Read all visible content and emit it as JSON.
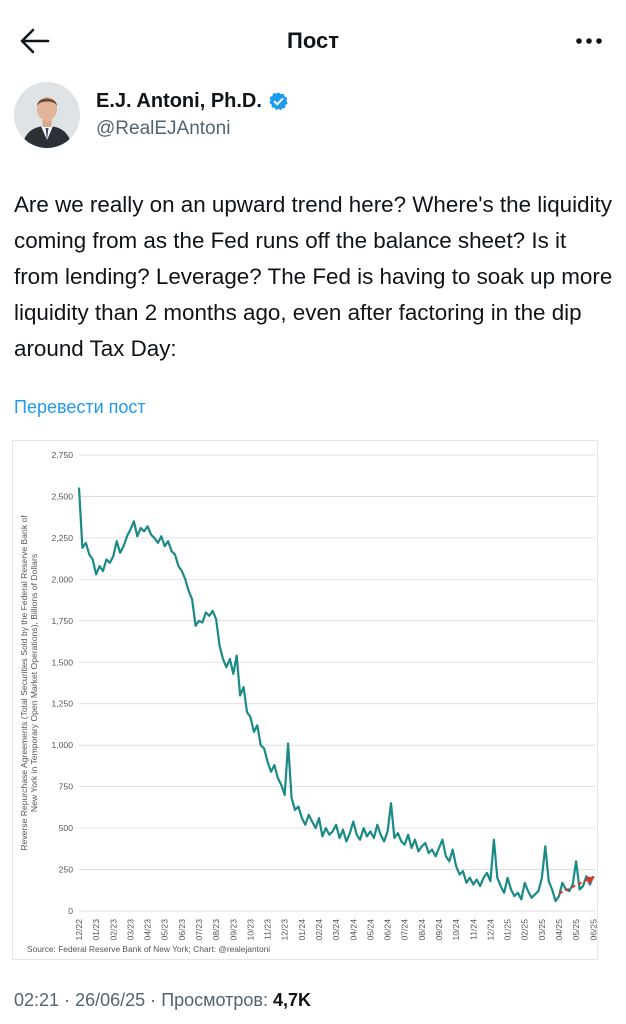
{
  "header": {
    "title": "Пост"
  },
  "author": {
    "name": "E.J. Antoni, Ph.D.",
    "handle": "@RealEJAntoni"
  },
  "tweet": {
    "text": "Are we really on an upward trend here? Where's the liquidity coming from as the Fed runs off the balance sheet? Is it from lending? Leverage? The Fed is having to soak up more liquidity than 2 months ago, even after factoring in the dip around Tax Day:",
    "translate_label": "Перевести пост"
  },
  "meta": {
    "time": "02:21",
    "sep": "·",
    "date": "26/06/25",
    "views_label": "Просмотров:",
    "views_count": "4,7K"
  },
  "colors": {
    "line": "#1a8a87",
    "trend": "#e0302a",
    "link": "#1d9bf0",
    "verified": "#1d9bf0"
  },
  "icons": {
    "back": "arrow-left-icon",
    "more": "more-icon",
    "verified": "verified-badge-icon"
  },
  "chart_data": {
    "type": "line",
    "ylabel": "Reverse Repurchase Agreements (Total Securities Sold by the Federal Reserve Bank of New York in Temporary Open Market Operations), Billions of Dollars",
    "source": "Source: Federal Reserve Bank of New York; Chart: @realejantoni",
    "yticks": [
      0,
      250,
      500,
      750,
      1000,
      1250,
      1500,
      1750,
      2000,
      2250,
      2500,
      2750
    ],
    "ytick_labels": [
      "0",
      "250",
      "500",
      "750",
      "1,000",
      "1,250",
      "1,500",
      "1,750",
      "2,000",
      "2,250",
      "2,500",
      "2,750"
    ],
    "ylim": [
      0,
      2750
    ],
    "xlim": [
      0,
      30.1
    ],
    "xticks": [
      "12/22",
      "01/23",
      "02/23",
      "03/23",
      "04/23",
      "05/23",
      "06/23",
      "07/23",
      "08/23",
      "09/23",
      "10/23",
      "11/23",
      "12/23",
      "01/24",
      "02/24",
      "03/24",
      "04/24",
      "05/24",
      "06/24",
      "07/24",
      "08/24",
      "09/24",
      "10/24",
      "11/24",
      "12/24",
      "01/25",
      "02/25",
      "03/25",
      "04/25",
      "05/25",
      "06/25"
    ],
    "grid": true,
    "legend": "none",
    "series": [
      {
        "values": [
          [
            0,
            2554
          ],
          [
            0.2,
            2190
          ],
          [
            0.4,
            2220
          ],
          [
            0.6,
            2150
          ],
          [
            0.8,
            2120
          ],
          [
            1.0,
            2030
          ],
          [
            1.2,
            2080
          ],
          [
            1.4,
            2050
          ],
          [
            1.6,
            2120
          ],
          [
            1.8,
            2100
          ],
          [
            2.0,
            2140
          ],
          [
            2.2,
            2230
          ],
          [
            2.4,
            2160
          ],
          [
            2.6,
            2200
          ],
          [
            2.8,
            2260
          ],
          [
            3.0,
            2300
          ],
          [
            3.2,
            2350
          ],
          [
            3.4,
            2260
          ],
          [
            3.6,
            2310
          ],
          [
            3.8,
            2290
          ],
          [
            4.0,
            2320
          ],
          [
            4.2,
            2270
          ],
          [
            4.4,
            2250
          ],
          [
            4.6,
            2220
          ],
          [
            4.8,
            2260
          ],
          [
            5.0,
            2200
          ],
          [
            5.2,
            2230
          ],
          [
            5.4,
            2170
          ],
          [
            5.6,
            2150
          ],
          [
            5.8,
            2080
          ],
          [
            6.0,
            2050
          ],
          [
            6.2,
            2000
          ],
          [
            6.4,
            1930
          ],
          [
            6.6,
            1880
          ],
          [
            6.8,
            1720
          ],
          [
            7.0,
            1750
          ],
          [
            7.2,
            1740
          ],
          [
            7.4,
            1800
          ],
          [
            7.6,
            1780
          ],
          [
            7.8,
            1810
          ],
          [
            8.0,
            1760
          ],
          [
            8.2,
            1600
          ],
          [
            8.4,
            1520
          ],
          [
            8.6,
            1470
          ],
          [
            8.8,
            1520
          ],
          [
            9.0,
            1430
          ],
          [
            9.2,
            1540
          ],
          [
            9.4,
            1300
          ],
          [
            9.6,
            1350
          ],
          [
            9.8,
            1200
          ],
          [
            10.0,
            1170
          ],
          [
            10.2,
            1080
          ],
          [
            10.4,
            1120
          ],
          [
            10.6,
            1000
          ],
          [
            10.8,
            980
          ],
          [
            11.0,
            900
          ],
          [
            11.2,
            840
          ],
          [
            11.4,
            880
          ],
          [
            11.6,
            800
          ],
          [
            11.8,
            760
          ],
          [
            12.0,
            700
          ],
          [
            12.2,
            1010
          ],
          [
            12.4,
            680
          ],
          [
            12.6,
            610
          ],
          [
            12.8,
            630
          ],
          [
            13.0,
            560
          ],
          [
            13.2,
            520
          ],
          [
            13.4,
            580
          ],
          [
            13.6,
            540
          ],
          [
            13.8,
            500
          ],
          [
            14.0,
            560
          ],
          [
            14.2,
            450
          ],
          [
            14.4,
            500
          ],
          [
            14.6,
            460
          ],
          [
            14.8,
            480
          ],
          [
            15.0,
            520
          ],
          [
            15.2,
            440
          ],
          [
            15.4,
            490
          ],
          [
            15.6,
            420
          ],
          [
            15.8,
            470
          ],
          [
            16.0,
            540
          ],
          [
            16.2,
            460
          ],
          [
            16.4,
            430
          ],
          [
            16.6,
            500
          ],
          [
            16.8,
            450
          ],
          [
            17.0,
            480
          ],
          [
            17.2,
            440
          ],
          [
            17.4,
            520
          ],
          [
            17.6,
            460
          ],
          [
            17.8,
            420
          ],
          [
            18.0,
            480
          ],
          [
            18.2,
            650
          ],
          [
            18.4,
            440
          ],
          [
            18.6,
            470
          ],
          [
            18.8,
            420
          ],
          [
            19.0,
            400
          ],
          [
            19.2,
            460
          ],
          [
            19.4,
            380
          ],
          [
            19.6,
            430
          ],
          [
            19.8,
            360
          ],
          [
            20.0,
            390
          ],
          [
            20.2,
            410
          ],
          [
            20.4,
            350
          ],
          [
            20.6,
            370
          ],
          [
            20.8,
            330
          ],
          [
            21.0,
            380
          ],
          [
            21.2,
            430
          ],
          [
            21.4,
            330
          ],
          [
            21.6,
            300
          ],
          [
            21.8,
            370
          ],
          [
            22.0,
            270
          ],
          [
            22.2,
            220
          ],
          [
            22.4,
            240
          ],
          [
            22.6,
            170
          ],
          [
            22.8,
            200
          ],
          [
            23.0,
            160
          ],
          [
            23.2,
            190
          ],
          [
            23.4,
            150
          ],
          [
            23.6,
            200
          ],
          [
            23.8,
            230
          ],
          [
            24.0,
            180
          ],
          [
            24.2,
            430
          ],
          [
            24.4,
            200
          ],
          [
            24.6,
            150
          ],
          [
            24.8,
            110
          ],
          [
            25.0,
            200
          ],
          [
            25.2,
            130
          ],
          [
            25.4,
            90
          ],
          [
            25.6,
            110
          ],
          [
            25.8,
            70
          ],
          [
            26.0,
            170
          ],
          [
            26.2,
            120
          ],
          [
            26.4,
            80
          ],
          [
            26.6,
            100
          ],
          [
            26.8,
            120
          ],
          [
            27.0,
            200
          ],
          [
            27.2,
            390
          ],
          [
            27.4,
            180
          ],
          [
            27.6,
            130
          ],
          [
            27.8,
            60
          ],
          [
            28.0,
            90
          ],
          [
            28.2,
            170
          ],
          [
            28.4,
            130
          ],
          [
            28.6,
            120
          ],
          [
            28.8,
            160
          ],
          [
            29.0,
            300
          ],
          [
            29.2,
            130
          ],
          [
            29.4,
            150
          ],
          [
            29.6,
            210
          ],
          [
            29.8,
            160
          ],
          [
            30.0,
            210
          ]
        ]
      }
    ],
    "trendline": [
      [
        28.0,
        105
      ],
      [
        30.1,
        205
      ]
    ]
  }
}
